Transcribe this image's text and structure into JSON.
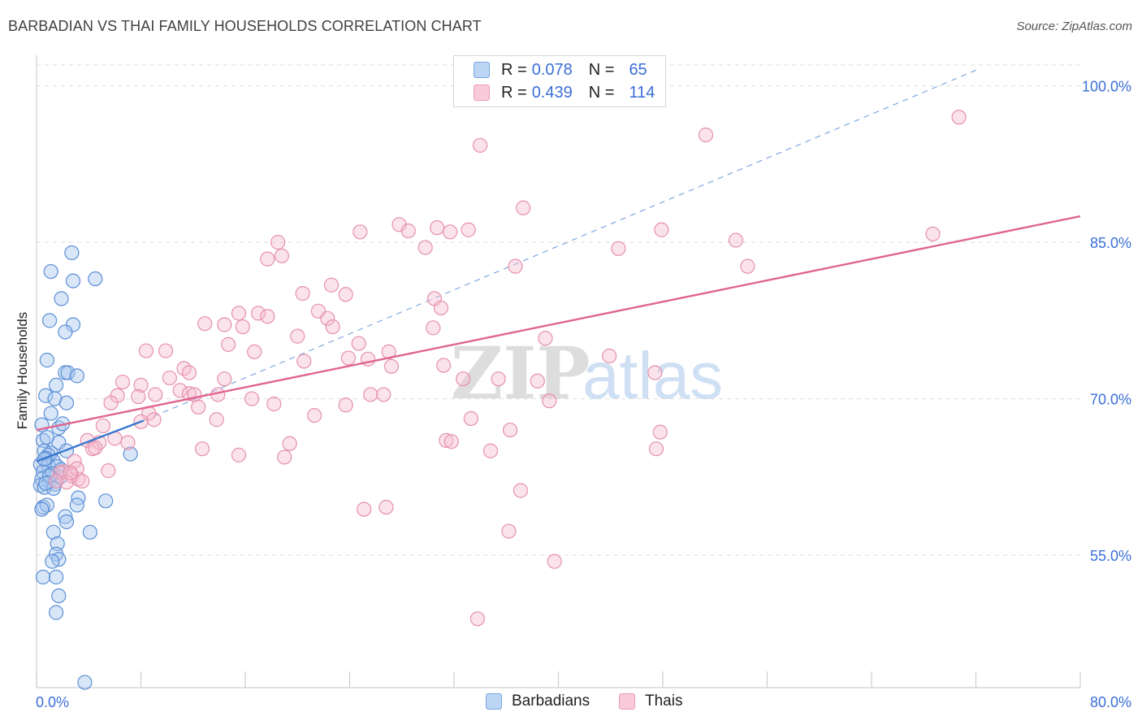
{
  "header": {
    "title": "BARBADIAN VS THAI FAMILY HOUSEHOLDS CORRELATION CHART",
    "source": "Source: ZipAtlas.com"
  },
  "watermark": {
    "zip": "ZIP",
    "atlas": "atlas"
  },
  "legend": {
    "rows": [
      {
        "r_label": "R =",
        "r_value": "0.078",
        "n_label": "N =",
        "n_value": "65"
      },
      {
        "r_label": "R =",
        "r_value": "0.439",
        "n_label": "N =",
        "n_value": "114"
      }
    ]
  },
  "bottom_legend": {
    "barbadians": "Barbadians",
    "thais": "Thais"
  },
  "colors": {
    "blue_fill": "#a8c8f0",
    "blue_stroke": "#5b8fd6",
    "blue_line": "#3a78d0",
    "pink_fill": "#f6bcd0",
    "pink_stroke": "#e590ad",
    "pink_line": "#e0658f",
    "accent_text": "#3a6fd8"
  },
  "chart_data": {
    "type": "scatter",
    "ylabel": "Family Households",
    "xlim": [
      0,
      80
    ],
    "ylim": [
      42.3,
      102
    ],
    "x_ticks": [
      "0.0%",
      "80.0%"
    ],
    "y_ticks": [
      {
        "value": 100,
        "label": "100.0%"
      },
      {
        "value": 85,
        "label": "85.0%"
      },
      {
        "value": 70,
        "label": "70.0%"
      },
      {
        "value": 55,
        "label": "55.0%"
      }
    ],
    "grid": "horizontal dashed",
    "legend_position": "top-center",
    "series": [
      {
        "name": "Barbadians",
        "points": [
          [
            2.7,
            84.0
          ],
          [
            1.1,
            82.2
          ],
          [
            2.8,
            81.3
          ],
          [
            4.5,
            81.5
          ],
          [
            1.9,
            79.6
          ],
          [
            1.0,
            77.5
          ],
          [
            2.8,
            77.1
          ],
          [
            2.2,
            76.4
          ],
          [
            0.8,
            73.7
          ],
          [
            2.2,
            72.5
          ],
          [
            2.4,
            72.5
          ],
          [
            3.1,
            72.2
          ],
          [
            1.5,
            71.3
          ],
          [
            0.7,
            70.3
          ],
          [
            1.4,
            70.0
          ],
          [
            2.3,
            69.6
          ],
          [
            1.1,
            68.6
          ],
          [
            0.4,
            67.5
          ],
          [
            1.7,
            67.2
          ],
          [
            2.0,
            67.6
          ],
          [
            0.5,
            66.0
          ],
          [
            1.7,
            65.8
          ],
          [
            0.6,
            65.0
          ],
          [
            1.1,
            64.8
          ],
          [
            0.9,
            64.6
          ],
          [
            2.3,
            65.0
          ],
          [
            0.7,
            64.3
          ],
          [
            1.3,
            64.0
          ],
          [
            0.3,
            63.7
          ],
          [
            0.9,
            63.6
          ],
          [
            1.6,
            63.5
          ],
          [
            0.5,
            63.0
          ],
          [
            1.2,
            62.8
          ],
          [
            1.8,
            62.5
          ],
          [
            0.4,
            62.3
          ],
          [
            1.0,
            62.0
          ],
          [
            1.4,
            61.8
          ],
          [
            0.3,
            61.7
          ],
          [
            0.6,
            61.5
          ],
          [
            1.3,
            61.4
          ],
          [
            7.2,
            64.7
          ],
          [
            3.2,
            60.5
          ],
          [
            5.3,
            60.2
          ],
          [
            3.1,
            59.8
          ],
          [
            0.5,
            59.6
          ],
          [
            0.8,
            59.8
          ],
          [
            0.4,
            59.4
          ],
          [
            2.2,
            58.7
          ],
          [
            2.3,
            58.2
          ],
          [
            4.1,
            57.2
          ],
          [
            1.3,
            57.2
          ],
          [
            1.6,
            56.1
          ],
          [
            1.5,
            55.1
          ],
          [
            1.7,
            54.6
          ],
          [
            1.2,
            54.4
          ],
          [
            0.5,
            52.9
          ],
          [
            1.5,
            52.9
          ],
          [
            1.7,
            51.1
          ],
          [
            1.5,
            49.5
          ],
          [
            3.7,
            42.8
          ],
          [
            0.8,
            66.3
          ],
          [
            0.6,
            64.2
          ],
          [
            1.9,
            63.2
          ],
          [
            1.0,
            62.6
          ],
          [
            0.7,
            61.9
          ]
        ],
        "trend": {
          "x": [
            0,
            8.2
          ],
          "y": [
            64.0,
            67.9
          ]
        },
        "trend_extension": {
          "x": [
            8.2,
            72.0
          ],
          "y": [
            67.9,
            101.5
          ]
        }
      },
      {
        "name": "Thais",
        "points": [
          [
            70.7,
            97.0
          ],
          [
            34.0,
            94.3
          ],
          [
            51.3,
            95.3
          ],
          [
            37.3,
            88.3
          ],
          [
            27.8,
            86.7
          ],
          [
            28.5,
            86.1
          ],
          [
            24.8,
            86.0
          ],
          [
            30.7,
            86.4
          ],
          [
            33.1,
            86.2
          ],
          [
            31.7,
            86.0
          ],
          [
            47.9,
            86.2
          ],
          [
            68.7,
            85.8
          ],
          [
            53.6,
            85.2
          ],
          [
            18.5,
            85.0
          ],
          [
            44.6,
            84.4
          ],
          [
            29.8,
            84.5
          ],
          [
            18.8,
            83.7
          ],
          [
            17.7,
            83.4
          ],
          [
            36.7,
            82.7
          ],
          [
            54.5,
            82.7
          ],
          [
            22.6,
            80.9
          ],
          [
            23.7,
            80.0
          ],
          [
            20.4,
            80.1
          ],
          [
            30.5,
            79.6
          ],
          [
            31.0,
            78.7
          ],
          [
            15.5,
            78.2
          ],
          [
            17.0,
            78.2
          ],
          [
            21.6,
            78.4
          ],
          [
            12.9,
            77.2
          ],
          [
            14.4,
            77.1
          ],
          [
            17.7,
            77.9
          ],
          [
            22.3,
            77.7
          ],
          [
            15.8,
            76.9
          ],
          [
            22.7,
            76.9
          ],
          [
            30.4,
            76.8
          ],
          [
            20.0,
            76.0
          ],
          [
            39.0,
            75.8
          ],
          [
            24.7,
            75.3
          ],
          [
            14.7,
            75.2
          ],
          [
            16.7,
            74.5
          ],
          [
            8.4,
            74.6
          ],
          [
            9.9,
            74.6
          ],
          [
            27.0,
            74.5
          ],
          [
            43.9,
            74.1
          ],
          [
            23.9,
            73.9
          ],
          [
            20.5,
            73.6
          ],
          [
            31.2,
            73.2
          ],
          [
            25.4,
            73.8
          ],
          [
            11.3,
            72.9
          ],
          [
            11.7,
            72.5
          ],
          [
            27.2,
            73.1
          ],
          [
            47.4,
            72.5
          ],
          [
            10.2,
            72.0
          ],
          [
            14.4,
            71.9
          ],
          [
            35.4,
            71.9
          ],
          [
            32.7,
            71.9
          ],
          [
            38.4,
            71.7
          ],
          [
            6.6,
            71.6
          ],
          [
            8.0,
            71.3
          ],
          [
            11.0,
            70.8
          ],
          [
            9.1,
            70.4
          ],
          [
            6.2,
            70.3
          ],
          [
            11.7,
            70.5
          ],
          [
            12.1,
            70.4
          ],
          [
            7.8,
            70.2
          ],
          [
            13.9,
            70.4
          ],
          [
            25.6,
            70.4
          ],
          [
            26.6,
            70.4
          ],
          [
            16.5,
            70.0
          ],
          [
            39.3,
            69.8
          ],
          [
            5.7,
            69.6
          ],
          [
            18.2,
            69.5
          ],
          [
            23.7,
            69.4
          ],
          [
            12.4,
            69.2
          ],
          [
            8.6,
            68.6
          ],
          [
            21.3,
            68.4
          ],
          [
            13.8,
            68.0
          ],
          [
            33.3,
            68.1
          ],
          [
            8.0,
            67.8
          ],
          [
            5.1,
            67.4
          ],
          [
            36.3,
            67.0
          ],
          [
            47.8,
            66.8
          ],
          [
            31.4,
            66.0
          ],
          [
            31.8,
            65.9
          ],
          [
            3.9,
            66.0
          ],
          [
            4.8,
            65.8
          ],
          [
            7.0,
            65.8
          ],
          [
            19.4,
            65.7
          ],
          [
            4.3,
            65.2
          ],
          [
            12.7,
            65.2
          ],
          [
            47.5,
            65.2
          ],
          [
            34.8,
            65.0
          ],
          [
            15.5,
            64.6
          ],
          [
            19.0,
            64.4
          ],
          [
            2.9,
            64.0
          ],
          [
            5.5,
            63.1
          ],
          [
            2.1,
            63.0
          ],
          [
            2.7,
            62.6
          ],
          [
            1.8,
            62.9
          ],
          [
            3.2,
            62.3
          ],
          [
            3.5,
            62.1
          ],
          [
            2.3,
            62.0
          ],
          [
            1.5,
            62.1
          ],
          [
            37.1,
            61.2
          ],
          [
            25.1,
            59.4
          ],
          [
            26.8,
            59.6
          ],
          [
            36.2,
            57.3
          ],
          [
            39.7,
            54.4
          ],
          [
            33.8,
            48.9
          ],
          [
            4.5,
            65.3
          ],
          [
            3.1,
            63.3
          ],
          [
            6.0,
            66.2
          ],
          [
            9.0,
            68.0
          ],
          [
            2.6,
            62.9
          ]
        ],
        "trend": {
          "x": [
            0,
            80
          ],
          "y": [
            67.0,
            87.5
          ]
        }
      }
    ]
  }
}
